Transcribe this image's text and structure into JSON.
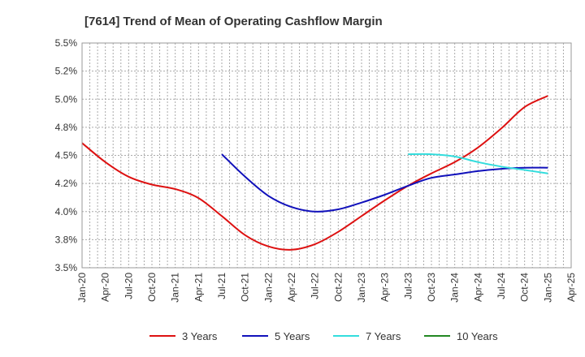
{
  "chart_data": {
    "type": "line",
    "title": "[7614]  Trend of Mean of Operating Cashflow Margin",
    "xlabel": "",
    "ylabel": "",
    "x_start": "Jan-20",
    "x_ticks": [
      "Jan-20",
      "Apr-20",
      "Jul-20",
      "Oct-20",
      "Jan-21",
      "Apr-21",
      "Jul-21",
      "Oct-21",
      "Jan-22",
      "Apr-22",
      "Jul-22",
      "Oct-22",
      "Jan-23",
      "Apr-23",
      "Jul-23",
      "Oct-23",
      "Jan-24",
      "Apr-24",
      "Jul-24",
      "Oct-24",
      "Jan-25",
      "Apr-25"
    ],
    "y_ticks": [
      "3.5%",
      "3.8%",
      "4.0%",
      "4.2%",
      "4.5%",
      "4.8%",
      "5.0%",
      "5.2%",
      "5.5%"
    ],
    "ylim": [
      3.5,
      5.5
    ],
    "y_unit": "%",
    "grid": true,
    "legend_position": "bottom",
    "series": [
      {
        "name": "3 Years",
        "color": "#dd1111",
        "points": [
          [
            "Jan-20",
            4.61
          ],
          [
            "Apr-20",
            4.44
          ],
          [
            "Jul-20",
            4.31
          ],
          [
            "Oct-20",
            4.24
          ],
          [
            "Jan-21",
            4.2
          ],
          [
            "Apr-21",
            4.12
          ],
          [
            "Jul-21",
            3.96
          ],
          [
            "Oct-21",
            3.79
          ],
          [
            "Jan-22",
            3.69
          ],
          [
            "Apr-22",
            3.66
          ],
          [
            "Jul-22",
            3.71
          ],
          [
            "Oct-22",
            3.82
          ],
          [
            "Jan-23",
            3.96
          ],
          [
            "Apr-23",
            4.1
          ],
          [
            "Jul-23",
            4.23
          ],
          [
            "Oct-23",
            4.34
          ],
          [
            "Jan-24",
            4.44
          ],
          [
            "Apr-24",
            4.57
          ],
          [
            "Jul-24",
            4.74
          ],
          [
            "Oct-24",
            4.93
          ],
          [
            "Jan-25",
            5.03
          ]
        ]
      },
      {
        "name": "5 Years",
        "color": "#1111bb",
        "points": [
          [
            "Jul-21",
            4.51
          ],
          [
            "Oct-21",
            4.31
          ],
          [
            "Jan-22",
            4.14
          ],
          [
            "Apr-22",
            4.04
          ],
          [
            "Jul-22",
            4.0
          ],
          [
            "Oct-22",
            4.02
          ],
          [
            "Jan-23",
            4.08
          ],
          [
            "Apr-23",
            4.15
          ],
          [
            "Jul-23",
            4.23
          ],
          [
            "Oct-23",
            4.3
          ],
          [
            "Jan-24",
            4.33
          ],
          [
            "Apr-24",
            4.36
          ],
          [
            "Jul-24",
            4.38
          ],
          [
            "Oct-24",
            4.39
          ],
          [
            "Jan-25",
            4.39
          ]
        ]
      },
      {
        "name": "7 Years",
        "color": "#33dddd",
        "points": [
          [
            "Jul-23",
            4.51
          ],
          [
            "Oct-23",
            4.51
          ],
          [
            "Jan-24",
            4.49
          ],
          [
            "Apr-24",
            4.44
          ],
          [
            "Jul-24",
            4.4
          ],
          [
            "Oct-24",
            4.37
          ],
          [
            "Jan-25",
            4.34
          ]
        ]
      },
      {
        "name": "10 Years",
        "color": "#228822",
        "points": []
      }
    ]
  }
}
